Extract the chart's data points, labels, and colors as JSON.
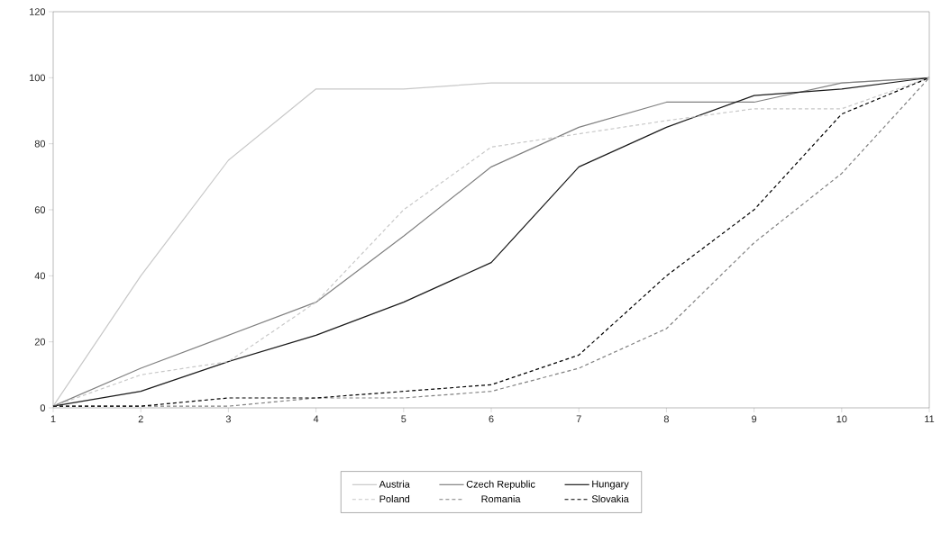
{
  "chart_data": {
    "type": "line",
    "x": [
      1,
      2,
      3,
      4,
      5,
      6,
      7,
      8,
      9,
      10,
      11
    ],
    "xlim": [
      1,
      11
    ],
    "xticks": [
      1,
      2,
      3,
      4,
      5,
      6,
      7,
      8,
      9,
      10,
      11
    ],
    "ylim": [
      0,
      120
    ],
    "yticks": [
      0,
      20,
      40,
      60,
      80,
      100,
      120
    ],
    "grid": false,
    "legend": "bottom",
    "marker": "none",
    "series": [
      {
        "name": "Austria",
        "color": "#c8c8c8",
        "line_style": "solid",
        "values": [
          0.5,
          40,
          75,
          96.6,
          96.6,
          98.4,
          98.4,
          98.4,
          98.4,
          98.4,
          100
        ]
      },
      {
        "name": "Czech Republic",
        "color": "#808080",
        "line_style": "solid",
        "values": [
          0.5,
          12,
          22,
          32,
          52,
          73,
          85,
          92.6,
          92.6,
          98.4,
          100
        ]
      },
      {
        "name": "Hungary",
        "color": "#1a1a1a",
        "line_style": "solid",
        "values": [
          0.5,
          5,
          14,
          22,
          32,
          44,
          73,
          85,
          94.6,
          96.6,
          100
        ]
      },
      {
        "name": "Poland",
        "color": "#c8c8c8",
        "line_style": "dashed",
        "values": [
          0.5,
          10,
          14,
          32,
          60,
          79,
          83,
          87,
          90.6,
          90.6,
          100
        ]
      },
      {
        "name": "Romania",
        "color": "#808080",
        "line_style": "dashed",
        "values": [
          0.5,
          0.5,
          0.5,
          3,
          3,
          5,
          12,
          24,
          50,
          71,
          100
        ]
      },
      {
        "name": "Slovakia",
        "color": "#000000",
        "line_style": "dashed",
        "values": [
          0.5,
          0.5,
          3,
          3,
          5,
          7,
          16,
          40,
          60,
          89,
          100
        ]
      }
    ]
  }
}
